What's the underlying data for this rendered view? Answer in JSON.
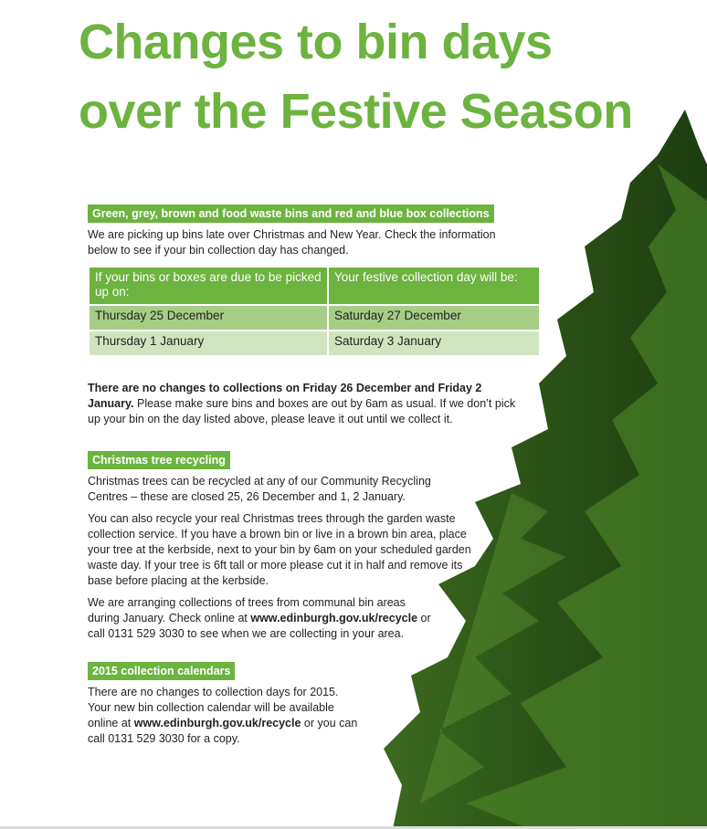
{
  "title": {
    "line1": "Changes to bin days",
    "line2": "over the Festive Season"
  },
  "colors": {
    "brand_green": "#6cb33f",
    "row1": "#a6cd85",
    "row2": "#d0e5bf"
  },
  "section1": {
    "heading": "Green, grey, brown and food waste bins and red and blue box collections",
    "intro": "We are picking up bins late over Christmas and New Year. Check the information below to see if your bin collection day has changed.",
    "table": {
      "headers": [
        "If your bins or boxes are due to be picked up on:",
        "Your festive collection day will be:"
      ],
      "rows": [
        [
          "Thursday 25 December",
          "Saturday 27 December"
        ],
        [
          "Thursday 1 January",
          "Saturday 3 January"
        ]
      ]
    },
    "note_bold": "There are no changes to collections on Friday 26 December and Friday 2 January.",
    "note": "Please make sure bins and boxes are out by 6am as usual. If we don’t pick up your bin on the day listed above, please leave it out until we collect it."
  },
  "section2": {
    "heading": "Christmas tree recycling",
    "p1": "Christmas trees can be recycled at any of our Community Recycling Centres – these are closed 25, 26 December and 1, 2 January.",
    "p2": "You can also recycle your real Christmas trees through the garden waste collection service. If you have a brown bin or live in a brown bin area, place your tree at the kerbside, next to your bin by 6am on your scheduled garden waste day. If your tree is 6ft tall or more please cut it in half and remove its base before placing at the kerbside.",
    "p3_a": "We are arranging collections of trees from communal bin areas during January. Check online at",
    "p3_link": "www.edinburgh.gov.uk/recycle",
    "p3_b": "or call 0131 529 3030 to see when we are collecting in your area."
  },
  "section3": {
    "heading": "2015 collection calendars",
    "p_a": "There are no changes to collection days for 2015. Your new bin collection calendar will be available online at",
    "p_link": "www.edinburgh.gov.uk/recycle",
    "p_b": "or you can call 0131 529 3030 for a copy."
  },
  "image": {
    "icon": "christmas-tree-photo"
  }
}
